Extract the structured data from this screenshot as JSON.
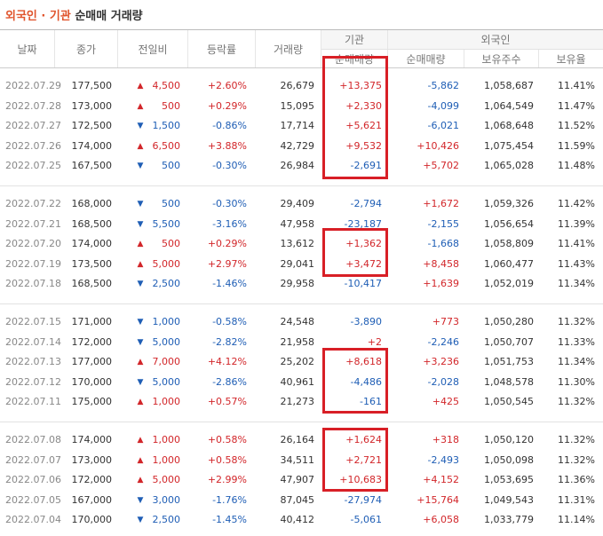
{
  "title": {
    "highlight": "외국인 · 기관",
    "rest": "순매매 거래량"
  },
  "header": {
    "date": "날짜",
    "close": "종가",
    "change": "전일비",
    "rate": "등락률",
    "volume": "거래량",
    "institution": "기관",
    "foreign": "외국인",
    "inst_net": "순매매량",
    "foreign_net": "순매매량",
    "foreign_holdings": "보유주수",
    "foreign_ratio": "보유율"
  },
  "table": {
    "groups": [
      [
        [
          "2022.07.29",
          "177,500",
          "▲",
          "4,500",
          "+2.60%",
          "26,679",
          "+13,375",
          "-5,862",
          "1,058,687",
          "11.41%"
        ],
        [
          "2022.07.28",
          "173,000",
          "▲",
          "500",
          "+0.29%",
          "15,095",
          "+2,330",
          "-4,099",
          "1,064,549",
          "11.47%"
        ],
        [
          "2022.07.27",
          "172,500",
          "▼",
          "1,500",
          "-0.86%",
          "17,714",
          "+5,621",
          "-6,021",
          "1,068,648",
          "11.52%"
        ],
        [
          "2022.07.26",
          "174,000",
          "▲",
          "6,500",
          "+3.88%",
          "42,729",
          "+9,532",
          "+10,426",
          "1,075,454",
          "11.59%"
        ],
        [
          "2022.07.25",
          "167,500",
          "▼",
          "500",
          "-0.30%",
          "26,984",
          "-2,691",
          "+5,702",
          "1,065,028",
          "11.48%"
        ]
      ],
      [
        [
          "2022.07.22",
          "168,000",
          "▼",
          "500",
          "-0.30%",
          "29,409",
          "-2,794",
          "+1,672",
          "1,059,326",
          "11.42%"
        ],
        [
          "2022.07.21",
          "168,500",
          "▼",
          "5,500",
          "-3.16%",
          "47,958",
          "-23,187",
          "-2,155",
          "1,056,654",
          "11.39%"
        ],
        [
          "2022.07.20",
          "174,000",
          "▲",
          "500",
          "+0.29%",
          "13,612",
          "+1,362",
          "-1,668",
          "1,058,809",
          "11.41%"
        ],
        [
          "2022.07.19",
          "173,500",
          "▲",
          "5,000",
          "+2.97%",
          "29,041",
          "+3,472",
          "+8,458",
          "1,060,477",
          "11.43%"
        ],
        [
          "2022.07.18",
          "168,500",
          "▼",
          "2,500",
          "-1.46%",
          "29,958",
          "-10,417",
          "+1,639",
          "1,052,019",
          "11.34%"
        ]
      ],
      [
        [
          "2022.07.15",
          "171,000",
          "▼",
          "1,000",
          "-0.58%",
          "24,548",
          "-3,890",
          "+773",
          "1,050,280",
          "11.32%"
        ],
        [
          "2022.07.14",
          "172,000",
          "▼",
          "5,000",
          "-2.82%",
          "21,958",
          "+2",
          "-2,246",
          "1,050,707",
          "11.33%"
        ],
        [
          "2022.07.13",
          "177,000",
          "▲",
          "7,000",
          "+4.12%",
          "25,202",
          "+8,618",
          "+3,236",
          "1,051,753",
          "11.34%"
        ],
        [
          "2022.07.12",
          "170,000",
          "▼",
          "5,000",
          "-2.86%",
          "40,961",
          "-4,486",
          "-2,028",
          "1,048,578",
          "11.30%"
        ],
        [
          "2022.07.11",
          "175,000",
          "▲",
          "1,000",
          "+0.57%",
          "21,273",
          "-161",
          "+425",
          "1,050,545",
          "11.32%"
        ]
      ],
      [
        [
          "2022.07.08",
          "174,000",
          "▲",
          "1,000",
          "+0.58%",
          "26,164",
          "+1,624",
          "+318",
          "1,050,120",
          "11.32%"
        ],
        [
          "2022.07.07",
          "173,000",
          "▲",
          "1,000",
          "+0.58%",
          "34,511",
          "+2,721",
          "-2,493",
          "1,050,098",
          "11.32%"
        ],
        [
          "2022.07.06",
          "172,000",
          "▲",
          "5,000",
          "+2.99%",
          "47,907",
          "+10,683",
          "+4,152",
          "1,053,695",
          "11.36%"
        ],
        [
          "2022.07.05",
          "167,000",
          "▼",
          "3,000",
          "-1.76%",
          "87,045",
          "-27,974",
          "+15,764",
          "1,049,543",
          "11.31%"
        ],
        [
          "2022.07.04",
          "170,000",
          "▼",
          "2,500",
          "-1.45%",
          "40,412",
          "-5,061",
          "+6,058",
          "1,033,779",
          "11.14%"
        ]
      ]
    ]
  }
}
